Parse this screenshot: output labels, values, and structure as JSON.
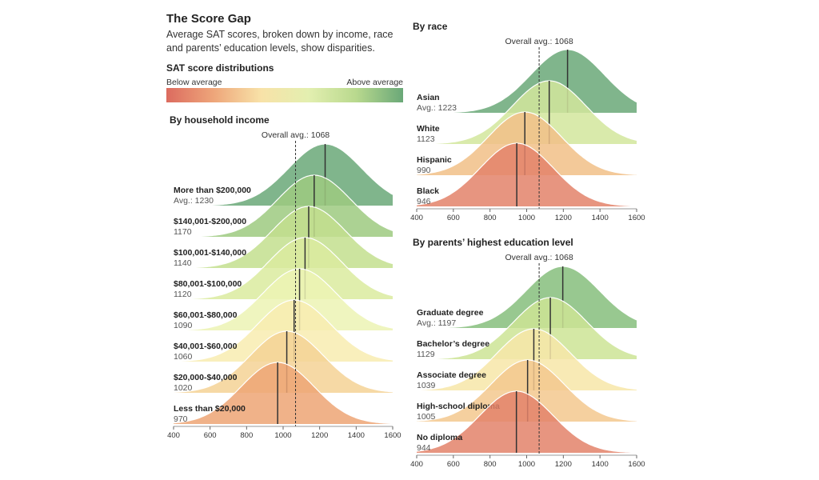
{
  "header": {
    "title": "The Score Gap",
    "subtitle_line1": "Average SAT scores, broken down by income, race",
    "subtitle_line2": "and parents’ education levels, show disparities.",
    "legend_title": "SAT score distributions",
    "legend_low": "Below average",
    "legend_high": "Above average",
    "legend_colors": [
      "#dc6b5f",
      "#eea67a",
      "#f8e2a8",
      "#e3efb0",
      "#b9d98e",
      "#6aa878"
    ]
  },
  "chart_data": [
    {
      "type": "ridgeline",
      "title": "By household income",
      "overall_avg": 1068,
      "overall_label": "Overall avg.: 1068",
      "xlim": [
        400,
        1600
      ],
      "ticks": [
        "400",
        "600",
        "800",
        "1000",
        "1200",
        "1400",
        "1600"
      ],
      "series": [
        {
          "name": "More than $200,000",
          "mean": 1230,
          "label": "Avg.: 1230",
          "color": "#6aa878"
        },
        {
          "name": "$140,001-$200,000",
          "mean": 1170,
          "label": "1170",
          "color": "#9dca80"
        },
        {
          "name": "$100,001-$140,000",
          "mean": 1140,
          "label": "1140",
          "color": "#c3df8e"
        },
        {
          "name": "$80,001-$100,000",
          "mean": 1120,
          "label": "1120",
          "color": "#dbeb9f"
        },
        {
          "name": "$60,001-$80,000",
          "mean": 1090,
          "label": "1090",
          "color": "#ecf3b4"
        },
        {
          "name": "$40,001-$60,000",
          "mean": 1060,
          "label": "1060",
          "color": "#f8ecb0"
        },
        {
          "name": "$20,000-$40,000",
          "mean": 1020,
          "label": "1020",
          "color": "#f5d295"
        },
        {
          "name": "Less than $20,000",
          "mean": 970,
          "label": "970",
          "color": "#eda474"
        }
      ]
    },
    {
      "type": "ridgeline",
      "title": "By race",
      "overall_avg": 1068,
      "overall_label": "Overall avg.: 1068",
      "xlim": [
        400,
        1600
      ],
      "ticks": [
        "400",
        "600",
        "800",
        "1000",
        "1200",
        "1400",
        "1600"
      ],
      "series": [
        {
          "name": "Asian",
          "mean": 1223,
          "label": "Avg.: 1223",
          "color": "#6aa878"
        },
        {
          "name": "White",
          "mean": 1123,
          "label": "1123",
          "color": "#d2e69c"
        },
        {
          "name": "Hispanic",
          "mean": 990,
          "label": "990",
          "color": "#f1bf87"
        },
        {
          "name": "Black",
          "mean": 946,
          "label": "946",
          "color": "#e3826a"
        }
      ]
    },
    {
      "type": "ridgeline",
      "title": "By parents’ highest education level",
      "overall_avg": 1068,
      "overall_label": "Overall avg.: 1068",
      "xlim": [
        400,
        1600
      ],
      "ticks": [
        "400",
        "600",
        "800",
        "1000",
        "1200",
        "1400",
        "1600"
      ],
      "series": [
        {
          "name": "Graduate degree",
          "mean": 1197,
          "label": "Avg.: 1197",
          "color": "#86be7c"
        },
        {
          "name": "Bachelor’s degree",
          "mean": 1129,
          "label": "1129",
          "color": "#cde495"
        },
        {
          "name": "Associate degree",
          "mean": 1039,
          "label": "1039",
          "color": "#f7e6a8"
        },
        {
          "name": "High-school diploma",
          "mean": 1005,
          "label": "1005",
          "color": "#f3c88e"
        },
        {
          "name": "No diploma",
          "mean": 944,
          "label": "944",
          "color": "#e3826a"
        }
      ]
    }
  ]
}
